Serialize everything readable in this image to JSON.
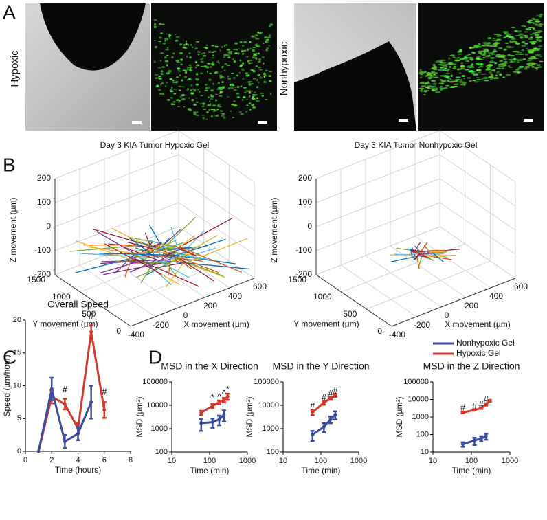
{
  "panel_labels": [
    "A",
    "B",
    "C",
    "D"
  ],
  "panel_a": {
    "labels": [
      "Hypoxic",
      "Nonhypoxic"
    ]
  },
  "legend": [
    {
      "name": "Nonhypoxic Gel",
      "color": "#3b4c9e"
    },
    {
      "name": "Hypoxic Gel",
      "color": "#d2382c"
    }
  ],
  "chart_data": [
    {
      "type": "line3d",
      "title": "Day 3 KIA Tumor Hypoxic Gel",
      "xlabel": "X movement (µm)",
      "ylabel": "Y movement (µm)",
      "zlabel": "Z movement (µm)",
      "xlim": [
        -400,
        600
      ],
      "xticks": [
        -400,
        -200,
        0,
        200,
        400,
        600
      ],
      "ylim": [
        0,
        1500
      ],
      "yticks": [
        0,
        500,
        1000,
        1500
      ],
      "zlim": [
        -200,
        200
      ],
      "zticks": [
        -200,
        -100,
        0,
        100,
        200
      ],
      "grid": true
    },
    {
      "type": "line3d",
      "title": "Day 3 KIA Tumor Nonhypoxic Gel",
      "xlabel": "X movement (µm)",
      "ylabel": "Y movement (µm)",
      "zlabel": "Z movement (µm)",
      "xlim": [
        -400,
        600
      ],
      "xticks": [
        -400,
        -200,
        0,
        200,
        400,
        600
      ],
      "ylim": [
        0,
        1500
      ],
      "yticks": [
        0,
        500,
        1000,
        1500
      ],
      "zlim": [
        -200,
        200
      ],
      "zticks": [
        -200,
        -100,
        0,
        100,
        200
      ],
      "grid": true
    },
    {
      "type": "line",
      "title": "Overall Speed",
      "xlabel": "Time (hours)",
      "ylabel": "Speed (µm/hour)",
      "xlim": [
        0,
        8
      ],
      "xticks": [
        0,
        2,
        4,
        6,
        8
      ],
      "ylim": [
        0,
        20
      ],
      "yticks": [
        0,
        5,
        10,
        15,
        20
      ],
      "x": [
        1,
        2,
        3,
        4,
        5,
        6
      ],
      "series": [
        {
          "color": "#d2382c",
          "values": [
            0,
            8.3,
            7.2,
            3.5,
            18.2,
            6.3
          ],
          "errors": [
            null,
            1,
            0.8,
            0.8,
            1,
            1.2
          ]
        },
        {
          "color": "#3b4c9e",
          "values": [
            0,
            9.5,
            1.5,
            2.7,
            7.5,
            null
          ],
          "errors": [
            null,
            1.7,
            1,
            1,
            2.5,
            null
          ]
        }
      ],
      "annotations": [
        {
          "x": 3,
          "y": 9.3,
          "text": "#"
        },
        {
          "x": 5,
          "y": 20.5,
          "text": "#"
        },
        {
          "x": 6,
          "y": 9,
          "text": "#"
        }
      ]
    },
    {
      "type": "line",
      "title": "MSD in the X Direction",
      "xlabel": "Time (min)",
      "ylabel": "MSD (µm²)",
      "xscale": "log",
      "yscale": "log",
      "xlim": [
        10,
        1000
      ],
      "xticks": [
        10,
        100,
        1000
      ],
      "ylim": [
        100,
        100000
      ],
      "yticks": [
        100,
        1000,
        10000,
        100000
      ],
      "x": [
        60,
        120,
        180,
        240,
        300
      ],
      "series": [
        {
          "color": "#d2382c",
          "values": [
            4800,
            9500,
            13500,
            17000,
            24000
          ],
          "errors": [
            1000,
            2000,
            2500,
            3500,
            7000
          ]
        },
        {
          "color": "#3b4c9e",
          "values": [
            1700,
            1900,
            2500,
            4000,
            null
          ],
          "errors": [
            900,
            800,
            1100,
            2000,
            null
          ]
        }
      ],
      "annotations": [
        {
          "x": 120,
          "y": 20000,
          "text": "*"
        },
        {
          "x": 180,
          "y": 22000,
          "text": "^"
        },
        {
          "x": 240,
          "y": 30000,
          "text": "^"
        },
        {
          "x": 300,
          "y": 45000,
          "text": "*"
        }
      ]
    },
    {
      "type": "line",
      "title": "MSD in the Y Direction",
      "xlabel": "Time (min)",
      "ylabel": "MSD (µm²)",
      "xscale": "log",
      "yscale": "log",
      "xlim": [
        10,
        1000
      ],
      "xticks": [
        10,
        100,
        1000
      ],
      "ylim": [
        100,
        100000
      ],
      "yticks": [
        100,
        1000,
        10000,
        100000
      ],
      "x": [
        60,
        120,
        180,
        240
      ],
      "series": [
        {
          "color": "#d2382c",
          "values": [
            5000,
            13000,
            20000,
            27000
          ],
          "errors": [
            1200,
            2500,
            3000,
            4000
          ]
        },
        {
          "color": "#3b4c9e",
          "values": [
            550,
            1200,
            2500,
            4000
          ],
          "errors": [
            250,
            500,
            800,
            1500
          ]
        }
      ],
      "annotations": [
        {
          "x": 60,
          "y": 9000,
          "text": "#"
        },
        {
          "x": 120,
          "y": 20000,
          "text": "#"
        },
        {
          "x": 180,
          "y": 30000,
          "text": "#"
        },
        {
          "x": 240,
          "y": 40000,
          "text": "#"
        }
      ]
    },
    {
      "type": "line",
      "title": "MSD in the Z Direction",
      "xlabel": "Time (min)",
      "ylabel": "MSD (µm²)",
      "xscale": "log",
      "yscale": "log",
      "xlim": [
        10,
        1000
      ],
      "xticks": [
        10,
        100,
        1000
      ],
      "ylim": [
        10,
        100000
      ],
      "yticks": [
        10,
        100,
        1000,
        10000,
        100000
      ],
      "x": [
        60,
        120,
        180,
        240,
        300
      ],
      "series": [
        {
          "color": "#d2382c",
          "values": [
            1800,
            2500,
            3200,
            5000,
            8500
          ],
          "errors": [
            200,
            200,
            300,
            500,
            1000
          ]
        },
        {
          "color": "#3b4c9e",
          "values": [
            28,
            45,
            60,
            80,
            null
          ],
          "errors": [
            8,
            20,
            20,
            30,
            null
          ]
        }
      ],
      "annotations": [
        {
          "x": 60,
          "y": 3200,
          "text": "#"
        },
        {
          "x": 120,
          "y": 3800,
          "text": "#"
        },
        {
          "x": 180,
          "y": 4800,
          "text": "#"
        },
        {
          "x": 240,
          "y": 9000,
          "text": "#"
        }
      ]
    }
  ]
}
